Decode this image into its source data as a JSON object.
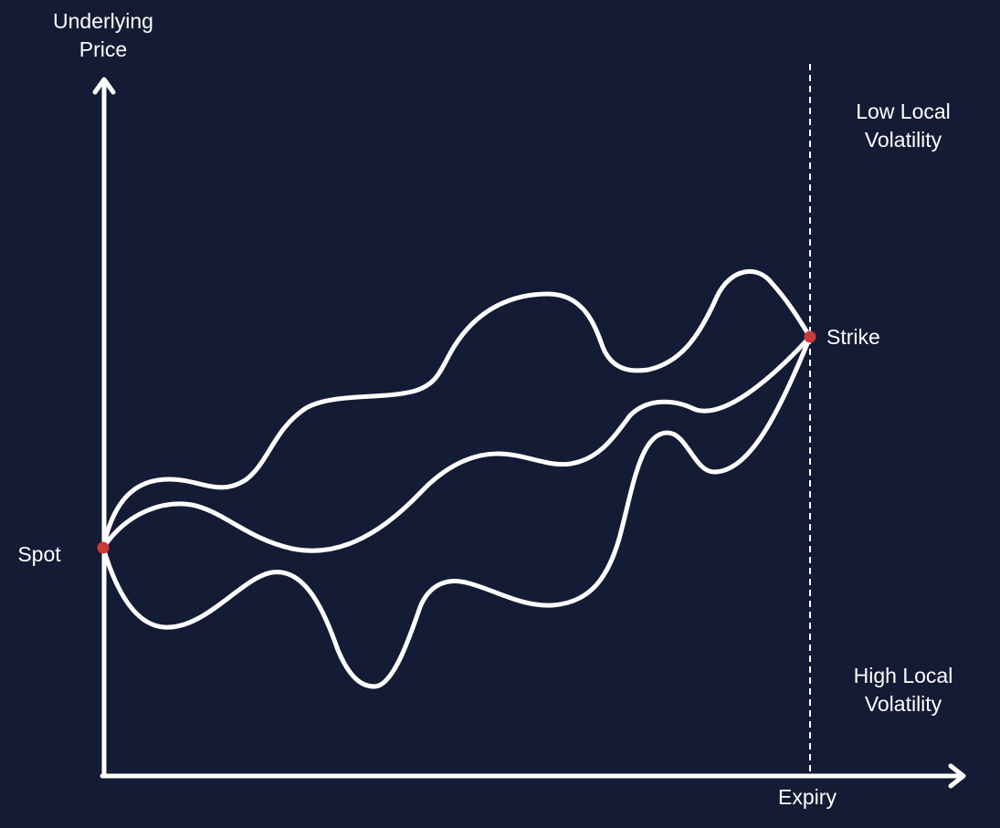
{
  "diagram": {
    "axis_y_label": {
      "line1": "Underlying",
      "line2": "Price"
    },
    "axis_x_label": "Expiry",
    "spot_label": "Spot",
    "strike_label": "Strike",
    "low_vol_label": {
      "line1": "Low Local",
      "line2": "Volatility"
    },
    "high_vol_label": {
      "line1": "High Local",
      "line2": "Volatility"
    },
    "paths_count": 3,
    "colors": {
      "background": "#141b34",
      "lines": "#ffffff",
      "points": "#cc3b3b"
    }
  }
}
